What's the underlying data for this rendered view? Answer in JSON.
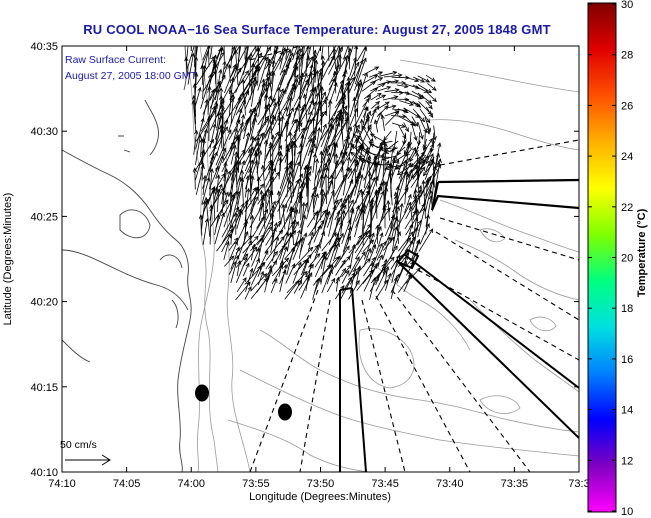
{
  "title": "RU COOL  NOAA−16  Sea Surface Temperature:  August 27, 2005 1848 GMT",
  "overlay": {
    "line1": "Raw Surface Current:",
    "line2": "August 27, 2005 18:00 GMT"
  },
  "scale": {
    "label": "50 cm/s",
    "speed_cm_s": 50
  },
  "axes": {
    "xlabel": "Longitude (Degrees:Minutes)",
    "ylabel": "Latitude (Degrees:Minutes)",
    "xticks": [
      "74:10",
      "74:05",
      "74:00",
      "73:55",
      "73:50",
      "73:45",
      "73:40",
      "73:35",
      "73:3"
    ],
    "yticks": [
      "40:35",
      "40:30",
      "40:25",
      "40:20",
      "40:15",
      "40:10"
    ],
    "lon_range_min": [
      -74.1667,
      -73.5
    ],
    "lat_range_min": [
      40.1667,
      40.5833
    ]
  },
  "colorbar": {
    "title": "Temperature (°C)",
    "min": 10,
    "max": 30,
    "ticks": [
      "30",
      "28",
      "26",
      "24",
      "22",
      "20",
      "18",
      "16",
      "14",
      "12",
      "10"
    ],
    "colors": [
      "#ff00ff",
      "#8000c0",
      "#0000ff",
      "#0080ff",
      "#00e0e0",
      "#00ff80",
      "#80ff00",
      "#ffff00",
      "#ffb000",
      "#ff5000",
      "#e00000",
      "#800000"
    ]
  },
  "markers": [
    {
      "lon": "73:58.9",
      "lat": "40:14.6"
    },
    {
      "lon": "73:52.4",
      "lat": "40:13.5"
    }
  ],
  "colors": {
    "title": "#1a1aa8",
    "vectors": "#000000",
    "coast": "#444444",
    "contours": "#9a9a9a"
  }
}
